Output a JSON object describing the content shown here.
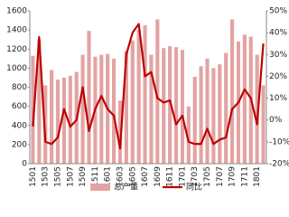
{
  "chart_data": {
    "type": "bar-line",
    "categories": [
      "1501",
      null,
      "1503",
      null,
      "1505",
      null,
      "1507",
      null,
      "1509",
      null,
      "1511",
      null,
      "1601",
      null,
      "1603",
      null,
      "1605",
      null,
      "1607",
      null,
      "1609",
      null,
      "1611",
      null,
      "1701",
      null,
      "1703",
      null,
      "1705",
      null,
      "1707",
      null,
      "1709",
      null,
      "1711",
      null,
      "1801",
      null
    ],
    "series": [
      {
        "name": "总产量",
        "type": "bar",
        "color": "#e3a3a3",
        "values": [
          1130,
          1300,
          820,
          980,
          880,
          900,
          920,
          960,
          1140,
          1390,
          1120,
          1140,
          1150,
          1100,
          660,
          1180,
          1290,
          1400,
          1450,
          1140,
          1510,
          1210,
          1230,
          1220,
          1190,
          600,
          910,
          1020,
          1100,
          1000,
          1040,
          1160,
          1510,
          1280,
          1350,
          1330,
          1140,
          820
        ]
      },
      {
        "name": "同比",
        "type": "line",
        "axis": "y2",
        "color": "#c00000",
        "values": [
          -3,
          38,
          -10,
          -11,
          -8,
          5,
          -3,
          0,
          15,
          -5,
          5,
          11,
          5,
          2,
          -13,
          30,
          40,
          44,
          20,
          22,
          10,
          8,
          9,
          -2,
          2,
          -10,
          -11,
          -11,
          -4,
          -11,
          -9,
          -8,
          5,
          8,
          14,
          10,
          -2,
          35
        ]
      }
    ],
    "ylim": [
      0,
      1600
    ],
    "yticks": [
      0,
      200,
      400,
      600,
      800,
      1000,
      1200,
      1400,
      1600
    ],
    "y2lim": [
      -20,
      50
    ],
    "y2ticks": [
      {
        "value": -20,
        "label": "-20%"
      },
      {
        "value": -10,
        "label": "-10%"
      },
      {
        "value": 0,
        "label": "0%"
      },
      {
        "value": 10,
        "label": "10%"
      },
      {
        "value": 20,
        "label": "20%"
      },
      {
        "value": 30,
        "label": "30%"
      },
      {
        "value": 40,
        "label": "40%"
      },
      {
        "value": 50,
        "label": "50%"
      }
    ],
    "legend": "bottom"
  }
}
